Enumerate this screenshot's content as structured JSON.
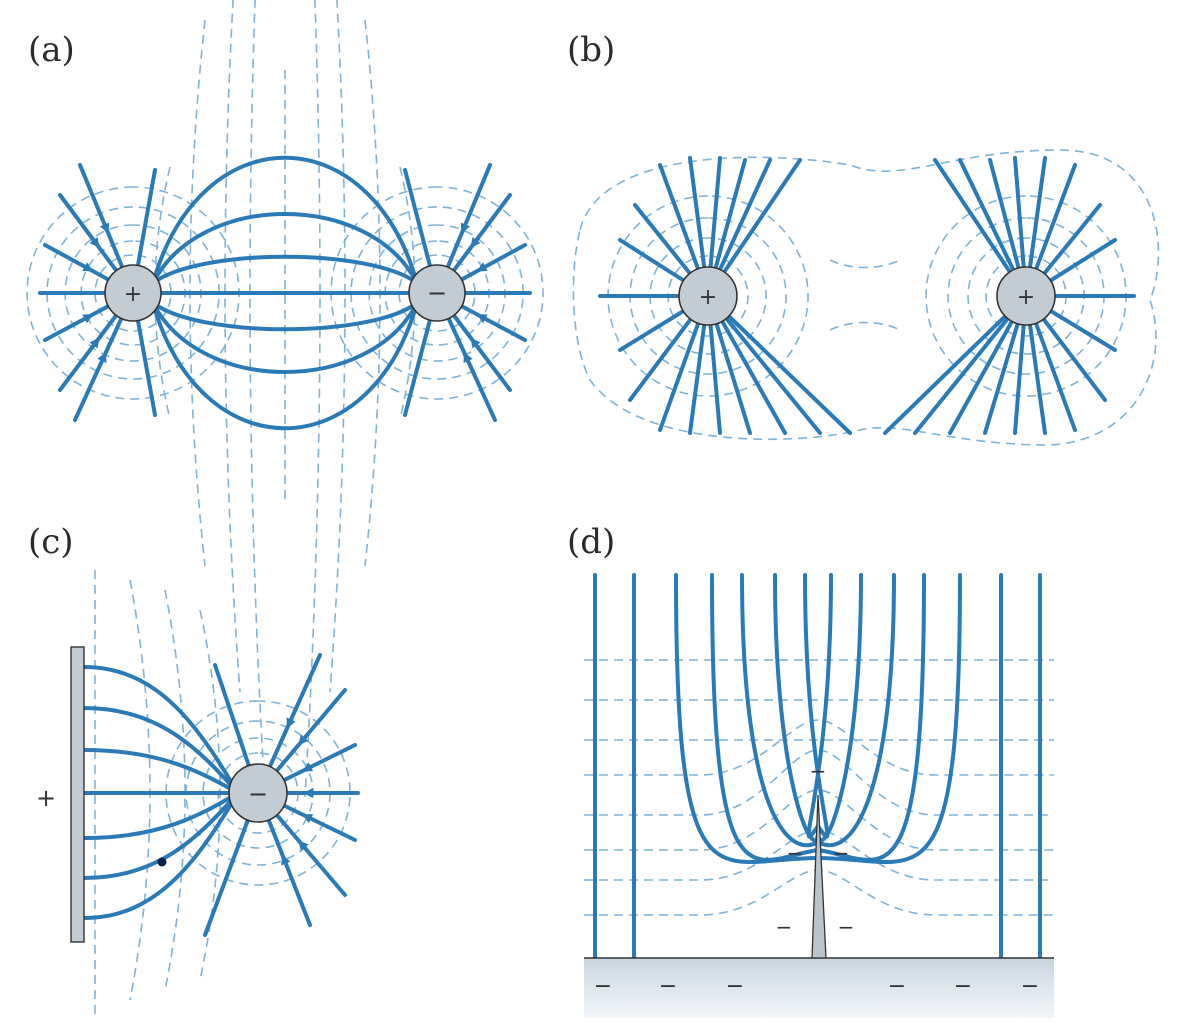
{
  "panels": {
    "a": {
      "label": "(a)",
      "charges": [
        "+",
        "−"
      ]
    },
    "b": {
      "label": "(b)",
      "charges": [
        "+",
        "+"
      ]
    },
    "c": {
      "label": "(c)",
      "plate_sign": "+",
      "charge": "−"
    },
    "d": {
      "label": "(d)",
      "tip_signs": [
        "−",
        "−",
        "−",
        "−",
        "−"
      ],
      "ground_signs": [
        "−",
        "−",
        "−",
        "−",
        "−",
        "−"
      ]
    }
  },
  "colors": {
    "field_line": "#2a7ab8",
    "equipotential": "#7fb3d8",
    "charge_fill": "#c3ccd3",
    "plate_fill": "#c3ccd3",
    "ground_fill": "#d9e2ea"
  },
  "icons": {
    "field_arrow": "arrowhead-icon"
  }
}
